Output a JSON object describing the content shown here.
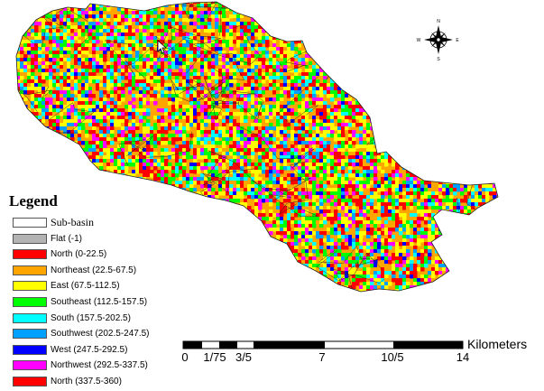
{
  "legend": {
    "title": "Legend",
    "items": [
      {
        "label": "Sub-basin",
        "color": "#ffffff"
      },
      {
        "label": "Flat (-1)",
        "color": "#b3b3b3"
      },
      {
        "label": "North (0-22.5)",
        "color": "#ff0000"
      },
      {
        "label": "Northeast (22.5-67.5)",
        "color": "#ffa500"
      },
      {
        "label": "East (67.5-112.5)",
        "color": "#ffff00"
      },
      {
        "label": "Southeast (112.5-157.5)",
        "color": "#00ff00"
      },
      {
        "label": "South (157.5-202.5)",
        "color": "#00ffff"
      },
      {
        "label": "Southwest (202.5-247.5)",
        "color": "#00a0ff"
      },
      {
        "label": "West (247.5-292.5)",
        "color": "#0000ff"
      },
      {
        "label": "Northwest (292.5-337.5)",
        "color": "#ff00ff"
      },
      {
        "label": "North (337.5-360)",
        "color": "#ff0000"
      }
    ]
  },
  "compass": {
    "icon": "compass-rose-icon",
    "labels": {
      "north": "N",
      "south": "S",
      "west": "W",
      "east": "E"
    }
  },
  "scale_bar": {
    "unit": "Kilometers",
    "ticks": [
      "0",
      "1/75",
      "3/5",
      "7",
      "10/5",
      "14"
    ]
  }
}
